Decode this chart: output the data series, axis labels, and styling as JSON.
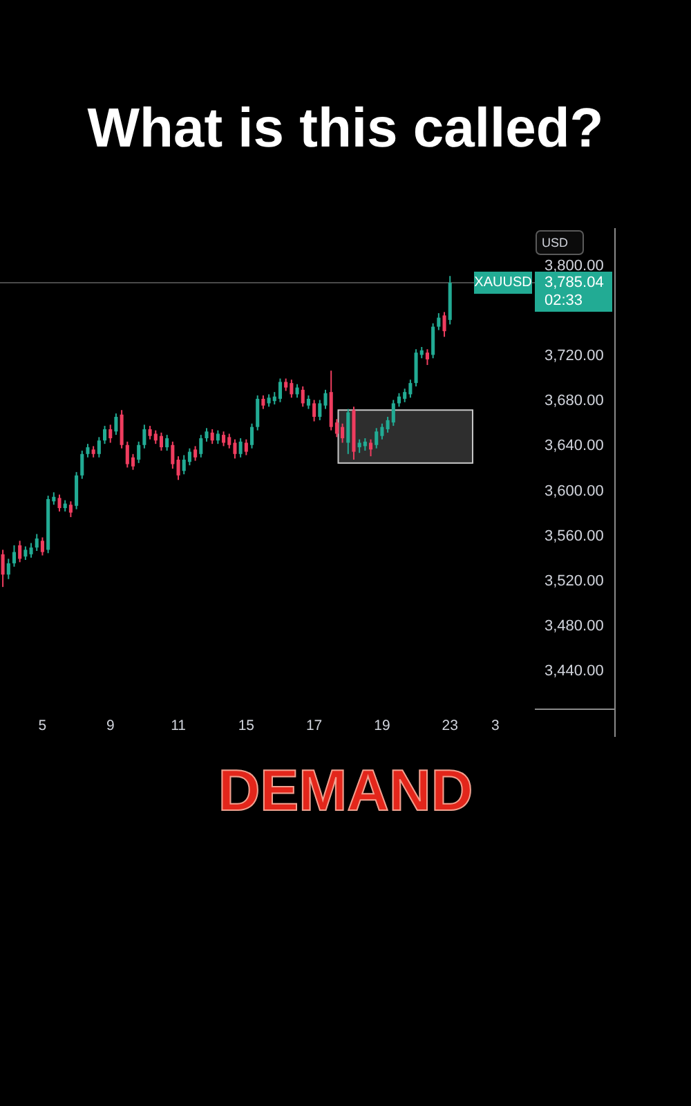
{
  "chart_data": {
    "type": "candlestick",
    "title": "What is this called?",
    "ylabel": "USD",
    "categories": [
      null,
      null,
      null,
      null,
      null,
      null,
      null,
      "5",
      null,
      null,
      null,
      null,
      null,
      null,
      null,
      null,
      null,
      null,
      null,
      "9",
      null,
      null,
      null,
      null,
      null,
      null,
      null,
      null,
      null,
      null,
      null,
      "11",
      null,
      null,
      null,
      null,
      null,
      null,
      null,
      null,
      null,
      null,
      null,
      "15",
      null,
      null,
      null,
      null,
      null,
      null,
      null,
      null,
      null,
      null,
      null,
      "17",
      null,
      null,
      null,
      null,
      null,
      null,
      null,
      null,
      null,
      null,
      null,
      "19",
      null,
      null,
      null,
      null,
      null,
      null,
      null,
      null,
      null,
      null,
      null,
      "23",
      null,
      null,
      null,
      null,
      null,
      null,
      null,
      "3",
      null,
      null,
      null,
      null,
      null,
      null
    ],
    "ohlc": [
      [
        3544,
        3548,
        3515,
        3526
      ],
      [
        3526,
        3540,
        3522,
        3536
      ],
      [
        3536,
        3552,
        3533,
        3546
      ],
      [
        3552,
        3556,
        3537,
        3540
      ],
      [
        3542,
        3551,
        3539,
        3548
      ],
      [
        3544,
        3554,
        3541,
        3550
      ],
      [
        3550,
        3562,
        3547,
        3558
      ],
      [
        3556,
        3559,
        3543,
        3546
      ],
      [
        3548,
        3596,
        3545,
        3593
      ],
      [
        3591,
        3599,
        3588,
        3595
      ],
      [
        3594,
        3597,
        3582,
        3585
      ],
      [
        3585,
        3592,
        3582,
        3589
      ],
      [
        3588,
        3591,
        3577,
        3581
      ],
      [
        3587,
        3617,
        3584,
        3614
      ],
      [
        3614,
        3636,
        3611,
        3633
      ],
      [
        3633,
        3642,
        3630,
        3639
      ],
      [
        3637,
        3640,
        3630,
        3633
      ],
      [
        3633,
        3648,
        3630,
        3645
      ],
      [
        3645,
        3658,
        3642,
        3655
      ],
      [
        3655,
        3659,
        3643,
        3647
      ],
      [
        3653,
        3669,
        3650,
        3666
      ],
      [
        3668,
        3672,
        3638,
        3641
      ],
      [
        3641,
        3644,
        3621,
        3624
      ],
      [
        3630,
        3633,
        3619,
        3622
      ],
      [
        3628,
        3644,
        3625,
        3641
      ],
      [
        3641,
        3659,
        3638,
        3655
      ],
      [
        3655,
        3658,
        3646,
        3649
      ],
      [
        3651,
        3654,
        3642,
        3645
      ],
      [
        3649,
        3652,
        3636,
        3639
      ],
      [
        3639,
        3650,
        3636,
        3647
      ],
      [
        3641,
        3644,
        3620,
        3624
      ],
      [
        3628,
        3631,
        3610,
        3614
      ],
      [
        3618,
        3632,
        3615,
        3628
      ],
      [
        3626,
        3638,
        3623,
        3635
      ],
      [
        3637,
        3640,
        3627,
        3630
      ],
      [
        3633,
        3650,
        3630,
        3647
      ],
      [
        3647,
        3656,
        3644,
        3653
      ],
      [
        3652,
        3655,
        3642,
        3645
      ],
      [
        3645,
        3654,
        3642,
        3651
      ],
      [
        3650,
        3653,
        3640,
        3643
      ],
      [
        3648,
        3651,
        3638,
        3641
      ],
      [
        3643,
        3646,
        3629,
        3633
      ],
      [
        3633,
        3647,
        3630,
        3644
      ],
      [
        3643,
        3646,
        3632,
        3635
      ],
      [
        3641,
        3660,
        3638,
        3657
      ],
      [
        3657,
        3685,
        3654,
        3682
      ],
      [
        3682,
        3685,
        3673,
        3676
      ],
      [
        3678,
        3686,
        3675,
        3683
      ],
      [
        3680,
        3688,
        3677,
        3684
      ],
      [
        3682,
        3700,
        3679,
        3697
      ],
      [
        3697,
        3700,
        3689,
        3692
      ],
      [
        3696,
        3699,
        3683,
        3686
      ],
      [
        3686,
        3695,
        3683,
        3692
      ],
      [
        3690,
        3693,
        3675,
        3678
      ],
      [
        3676,
        3685,
        3673,
        3682
      ],
      [
        3678,
        3681,
        3662,
        3666
      ],
      [
        3666,
        3681,
        3663,
        3678
      ],
      [
        3676,
        3690,
        3673,
        3687
      ],
      [
        3688,
        3707,
        3654,
        3657
      ],
      [
        3661,
        3664,
        3648,
        3651
      ],
      [
        3657,
        3660,
        3643,
        3647
      ],
      [
        3643,
        3673,
        3633,
        3670
      ],
      [
        3672,
        3675,
        3628,
        3635
      ],
      [
        3639,
        3646,
        3634,
        3643
      ],
      [
        3640,
        3647,
        3636,
        3644
      ],
      [
        3643,
        3646,
        3631,
        3637
      ],
      [
        3641,
        3656,
        3638,
        3653
      ],
      [
        3649,
        3660,
        3646,
        3657
      ],
      [
        3655,
        3666,
        3652,
        3663
      ],
      [
        3661,
        3681,
        3658,
        3678
      ],
      [
        3678,
        3687,
        3675,
        3684
      ],
      [
        3682,
        3691,
        3679,
        3688
      ],
      [
        3686,
        3699,
        3683,
        3696
      ],
      [
        3696,
        3726,
        3693,
        3723
      ],
      [
        3721,
        3728,
        3718,
        3725
      ],
      [
        3723,
        3726,
        3712,
        3717
      ],
      [
        3721,
        3749,
        3718,
        3746
      ],
      [
        3746,
        3758,
        3743,
        3754
      ],
      [
        3756,
        3759,
        3737,
        3742
      ],
      [
        3752,
        3791,
        3748,
        3785.04
      ],
      null,
      null,
      null,
      null,
      null,
      null,
      null,
      null,
      null,
      null,
      null,
      null,
      null,
      null
    ],
    "colors": [
      "#ef3d5f",
      "#22ab94",
      "#22ab94",
      "#ef3d5f",
      "#22ab94",
      "#22ab94",
      "#22ab94",
      "#ef3d5f",
      "#22ab94",
      "#22ab94",
      "#ef3d5f",
      "#22ab94",
      "#ef3d5f",
      "#22ab94",
      "#22ab94",
      "#22ab94",
      "#ef3d5f",
      "#22ab94",
      "#22ab94",
      "#ef3d5f",
      "#22ab94",
      "#ef3d5f",
      "#ef3d5f",
      "#ef3d5f",
      "#22ab94",
      "#22ab94",
      "#ef3d5f",
      "#ef3d5f",
      "#ef3d5f",
      "#22ab94",
      "#ef3d5f",
      "#ef3d5f",
      "#22ab94",
      "#22ab94",
      "#ef3d5f",
      "#22ab94",
      "#22ab94",
      "#ef3d5f",
      "#22ab94",
      "#ef3d5f",
      "#ef3d5f",
      "#ef3d5f",
      "#22ab94",
      "#ef3d5f",
      "#22ab94",
      "#22ab94",
      "#ef3d5f",
      "#22ab94",
      "#22ab94",
      "#22ab94",
      "#ef3d5f",
      "#ef3d5f",
      "#22ab94",
      "#ef3d5f",
      "#22ab94",
      "#ef3d5f",
      "#22ab94",
      "#22ab94",
      "#ef3d5f",
      "#ef3d5f",
      "#ef3d5f",
      "#22ab94",
      "#ef3d5f",
      "#22ab94",
      "#22ab94",
      "#ef3d5f",
      "#22ab94",
      "#22ab94",
      "#22ab94",
      "#22ab94",
      "#22ab94",
      "#22ab94",
      "#22ab94",
      "#22ab94",
      "#22ab94",
      "#ef3d5f",
      "#22ab94",
      "#22ab94",
      "#ef3d5f",
      "#22ab94",
      null,
      null,
      null,
      null,
      null,
      null,
      null,
      null,
      null,
      null,
      null,
      null,
      null,
      null
    ],
    "ylim": [
      3440,
      3800
    ],
    "yticks": [
      {
        "value": 3440,
        "label": "3,440.00"
      },
      {
        "value": 3480,
        "label": "3,480.00"
      },
      {
        "value": 3520,
        "label": "3,520.00"
      },
      {
        "value": 3560,
        "label": "3,560.00"
      },
      {
        "value": 3600,
        "label": "3,600.00"
      },
      {
        "value": 3640,
        "label": "3,640.00"
      },
      {
        "value": 3680,
        "label": "3,680.00"
      },
      {
        "value": 3720,
        "label": "3,720.00"
      },
      {
        "value": 3800,
        "label": "3,800.00"
      }
    ],
    "ref_lines": [
      {
        "axis": "y",
        "value": 3785.04,
        "label": "3,785.04",
        "color": "#4a4a4a"
      }
    ],
    "bands": [
      {
        "axis": "y",
        "from": 3625,
        "to": 3672,
        "color": "#333333"
      }
    ],
    "annotations": [
      {
        "text": "XAUUSD",
        "y": 3785.04
      },
      "02:33",
      "DEMAND"
    ]
  }
}
